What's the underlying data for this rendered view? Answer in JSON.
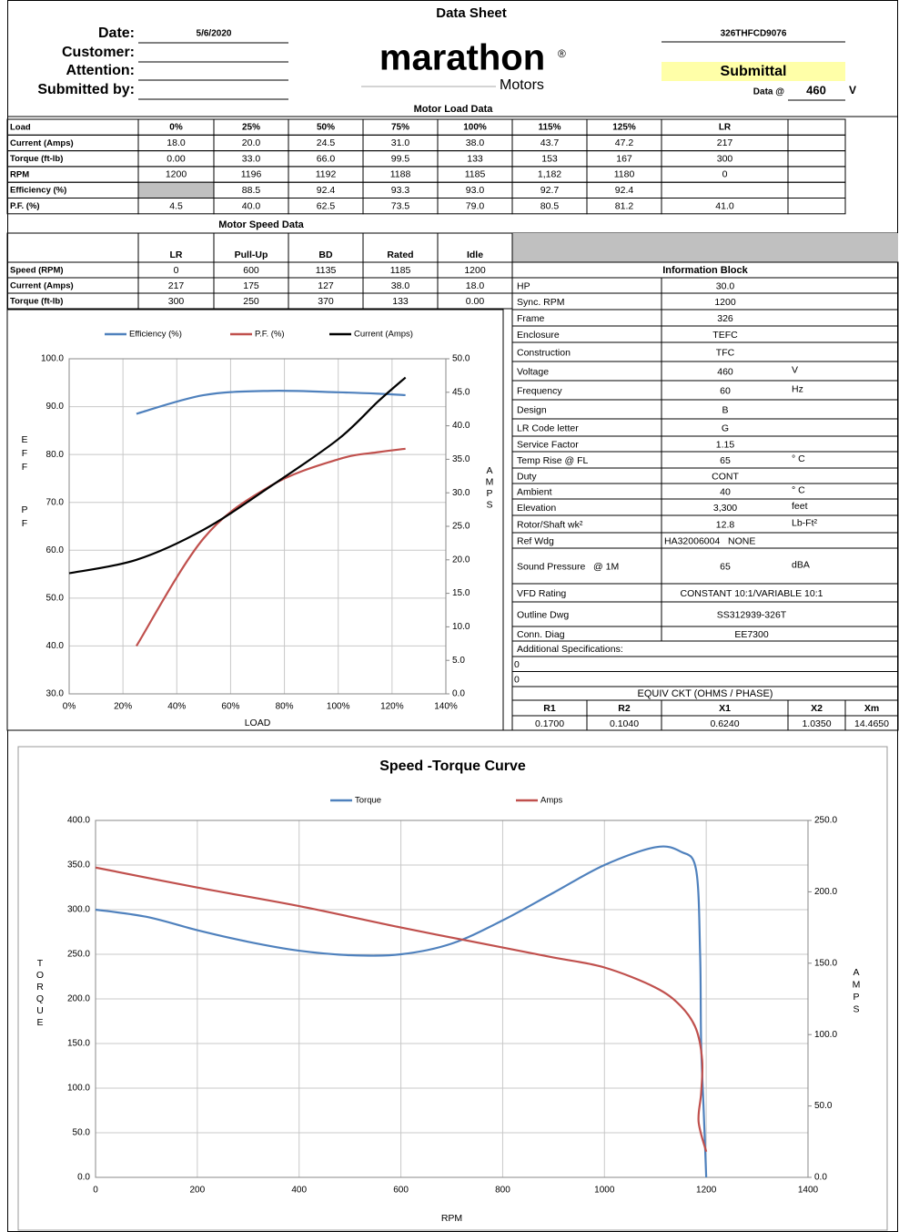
{
  "header": {
    "title": "Data Sheet",
    "fields": [
      {
        "label": "Date:",
        "value": "5/6/2020"
      },
      {
        "label": "Customer:",
        "value": null
      },
      {
        "label": "Attention:",
        "value": null
      },
      {
        "label": "Submitted by:",
        "value": null
      }
    ],
    "logo": {
      "name": "marathon",
      "mark": "®",
      "sub": "Motors"
    },
    "model": "326THFCD9076",
    "status": "Submittal",
    "data_at": {
      "label": "Data @",
      "value": "460",
      "unit": "V"
    }
  },
  "load_table": {
    "title": "Motor Load Data",
    "header": [
      "Load",
      "0%",
      "25%",
      "50%",
      "75%",
      "100%",
      "115%",
      "125%",
      "LR",
      null
    ],
    "rows": [
      [
        "Current (Amps)",
        "18.0",
        "20.0",
        "24.5",
        "31.0",
        "38.0",
        "43.7",
        "47.2",
        "217",
        null
      ],
      [
        "Torque (ft-lb)",
        "0.00",
        "33.0",
        "66.0",
        "99.5",
        "133",
        "153",
        "167",
        "300",
        null
      ],
      [
        "RPM",
        "1200",
        "1196",
        "1192",
        "1188",
        "1185",
        "1,182",
        "1180",
        "0",
        null
      ],
      [
        "Efficiency (%)",
        null,
        "88.5",
        "92.4",
        "93.3",
        "93.0",
        "92.7",
        "92.4",
        null,
        null
      ],
      [
        "P.F. (%)",
        "4.5",
        "40.0",
        "62.5",
        "73.5",
        "79.0",
        "80.5",
        "81.2",
        "41.0",
        null
      ]
    ]
  },
  "speed_table": {
    "title": "Motor Speed Data",
    "header": [
      null,
      "LR",
      "Pull-Up",
      "BD",
      "Rated",
      "Idle"
    ],
    "rows": [
      [
        "Speed (RPM)",
        "0",
        "600",
        "1135",
        "1185",
        "1200"
      ],
      [
        "Current (Amps)",
        "217",
        "175",
        "127",
        "38.0",
        "18.0"
      ],
      [
        "Torque (ft-lb)",
        "300",
        "250",
        "370",
        "133",
        "0.00"
      ]
    ]
  },
  "info_block": {
    "title": "Information Block",
    "rows": [
      [
        "HP",
        "30.0",
        null
      ],
      [
        "Sync. RPM",
        "1200",
        null
      ],
      [
        "Frame",
        "326",
        null
      ],
      [
        "Enclosure",
        "TEFC",
        null
      ],
      [
        "Construction",
        "TFC",
        null
      ],
      [
        "Voltage",
        "460",
        "V"
      ],
      [
        "Frequency",
        "60",
        "Hz"
      ],
      [
        "Design",
        "B",
        null
      ],
      [
        "LR Code letter",
        "G",
        null
      ],
      [
        "Service Factor",
        "1.15",
        null
      ],
      [
        "Temp Rise @ FL",
        "65",
        "° C"
      ],
      [
        "Duty",
        "CONT",
        null
      ],
      [
        "Ambient",
        "40",
        "° C"
      ],
      [
        "Elevation",
        "3,300",
        "feet"
      ],
      [
        "Rotor/Shaft wk²",
        "12.8",
        "Lb-Ft²"
      ],
      [
        "Ref Wdg",
        "HA32006004   NONE",
        null
      ],
      [
        "Sound Pressure   @ 1M",
        "65",
        "dBA"
      ],
      [
        "VFD Rating",
        "CONSTANT 10:1/VARIABLE 10:1",
        null
      ],
      [
        "Outline Dwg",
        "SS312939-326T",
        null
      ],
      [
        "Conn. Diag",
        "EE7300",
        null
      ]
    ]
  },
  "additional": {
    "title": "Additional Specifications:",
    "lines": [
      "0",
      "0"
    ]
  },
  "equiv": {
    "title": "EQUIV CKT (OHMS / PHASE)",
    "header": [
      "R1",
      "R2",
      "X1",
      "X2",
      "Xm"
    ],
    "values": [
      "0.1700",
      "0.1040",
      "0.6240",
      "1.0350",
      "14.4650"
    ]
  },
  "chart_data": [
    {
      "type": "line",
      "smooth": true,
      "legend": "top",
      "grid": true,
      "x_label": "LOAD",
      "y_label": "EFF PF",
      "y2_label": "AMPS",
      "xlim": [
        0,
        140
      ],
      "xticks": [
        {
          "value": 0,
          "label": "0%"
        },
        {
          "value": 20,
          "label": "20%"
        },
        {
          "value": 40,
          "label": "40%"
        },
        {
          "value": 60,
          "label": "60%"
        },
        {
          "value": 80,
          "label": "80%"
        },
        {
          "value": 100,
          "label": "100%"
        },
        {
          "value": 120,
          "label": "120%"
        },
        {
          "value": 140,
          "label": "140%"
        }
      ],
      "ylim": [
        30,
        100
      ],
      "yticks": [
        {
          "value": 30,
          "label": "30.0"
        },
        {
          "value": 40,
          "label": "40.0"
        },
        {
          "value": 50,
          "label": "50.0"
        },
        {
          "value": 60,
          "label": "60.0"
        },
        {
          "value": 70,
          "label": "70.0"
        },
        {
          "value": 80,
          "label": "80.0"
        },
        {
          "value": 90,
          "label": "90.0"
        },
        {
          "value": 100,
          "label": "100.0"
        }
      ],
      "y2lim": [
        0,
        50
      ],
      "y2ticks": [
        {
          "value": 0,
          "label": "0.0"
        },
        {
          "value": 5,
          "label": "5.0"
        },
        {
          "value": 10,
          "label": "10.0"
        },
        {
          "value": 15,
          "label": "15.0"
        },
        {
          "value": 20,
          "label": "20.0"
        },
        {
          "value": 25,
          "label": "25.0"
        },
        {
          "value": 30,
          "label": "30.0"
        },
        {
          "value": 35,
          "label": "35.0"
        },
        {
          "value": 40,
          "label": "40.0"
        },
        {
          "value": 45,
          "label": "45.0"
        },
        {
          "value": 50,
          "label": "50.0"
        }
      ],
      "series": [
        {
          "name": "Efficiency (%)",
          "color": "#4f81bd",
          "x": [
            25,
            50,
            75,
            100,
            115,
            125
          ],
          "values": [
            88.5,
            92.4,
            93.3,
            93.0,
            92.7,
            92.4
          ]
        },
        {
          "name": "P.F. (%)",
          "color": "#c0504d",
          "x": [
            25,
            50,
            75,
            100,
            115,
            125
          ],
          "values": [
            40.0,
            62.5,
            73.5,
            79.0,
            80.5,
            81.2
          ]
        },
        {
          "name": "Current (Amps)",
          "color": "#000000",
          "axis": "y2",
          "x": [
            0,
            25,
            50,
            75,
            100,
            115,
            125
          ],
          "values": [
            18.0,
            20.0,
            24.5,
            31.0,
            38.0,
            43.7,
            47.2
          ]
        }
      ]
    },
    {
      "type": "line",
      "smooth": true,
      "title": "Speed -Torque Curve",
      "legend": "top",
      "grid": true,
      "x_label": "RPM",
      "y_label": "TORQUE",
      "y2_label": "AMPS",
      "xlim": [
        0,
        1400
      ],
      "xticks": [
        0,
        200,
        400,
        600,
        800,
        1000,
        1200,
        1400
      ],
      "ylim": [
        0,
        400
      ],
      "yticks": [
        {
          "value": 0,
          "label": "0.0"
        },
        {
          "value": 50,
          "label": "50.0"
        },
        {
          "value": 100,
          "label": "100.0"
        },
        {
          "value": 150,
          "label": "150.0"
        },
        {
          "value": 200,
          "label": "200.0"
        },
        {
          "value": 250,
          "label": "250.0"
        },
        {
          "value": 300,
          "label": "300.0"
        },
        {
          "value": 350,
          "label": "350.0"
        },
        {
          "value": 400,
          "label": "400.0"
        }
      ],
      "y2lim": [
        0,
        250
      ],
      "y2ticks": [
        {
          "value": 0,
          "label": "0.0"
        },
        {
          "value": 50,
          "label": "50.0"
        },
        {
          "value": 100,
          "label": "100.0"
        },
        {
          "value": 150,
          "label": "150.0"
        },
        {
          "value": 200,
          "label": "200.0"
        },
        {
          "value": 250,
          "label": "250.0"
        }
      ],
      "series": [
        {
          "name": "Torque",
          "color": "#4f81bd",
          "x": [
            0,
            100,
            200,
            300,
            400,
            500,
            600,
            700,
            800,
            900,
            1000,
            1100,
            1150,
            1180,
            1188,
            1190,
            1195,
            1200
          ],
          "values": [
            300,
            292,
            277,
            264,
            254,
            249,
            250,
            262,
            288,
            319,
            350,
            370,
            365,
            345,
            250,
            150,
            75,
            0
          ]
        },
        {
          "name": "Amps",
          "color": "#c0504d",
          "axis": "y2",
          "x": [
            0,
            200,
            400,
            600,
            800,
            900,
            1000,
            1100,
            1150,
            1180,
            1192,
            1190,
            1185,
            1200
          ],
          "values": [
            217,
            203,
            190,
            175,
            161,
            154,
            147,
            133,
            120,
            104,
            82,
            59,
            39,
            18
          ]
        }
      ]
    }
  ]
}
